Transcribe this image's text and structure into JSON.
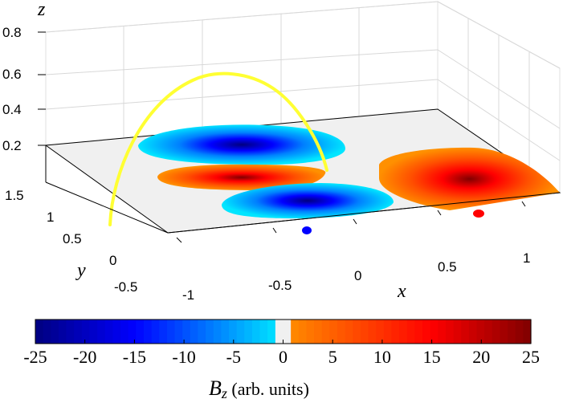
{
  "chart_data": {
    "type": "surface-3d",
    "axes": {
      "x": {
        "label": "x",
        "ticks": [
          "-1",
          "-0.5",
          "0",
          "0.5",
          "1"
        ]
      },
      "y": {
        "label": "y",
        "ticks": [
          "-0.5",
          "0",
          "0.5",
          "1",
          "1.5"
        ]
      },
      "z": {
        "label": "z",
        "ticks": [
          "0.2",
          "0.4",
          "0.6",
          "0.8"
        ]
      }
    },
    "grid": true,
    "lobes": [
      {
        "name": "negative-lobe-top",
        "sign": "negative",
        "peak": -25
      },
      {
        "name": "positive-lobe-middle",
        "sign": "positive",
        "peak": 25
      },
      {
        "name": "negative-lobe-front",
        "sign": "negative",
        "peak": -25
      },
      {
        "name": "positive-lobe-right",
        "sign": "positive",
        "peak": 25
      }
    ],
    "footpoints": [
      {
        "name": "negative-footpoint",
        "color": "#0000ff"
      },
      {
        "name": "positive-footpoint",
        "color": "#ff0000"
      }
    ],
    "loop": {
      "color": "#ffff33"
    },
    "colorbar": {
      "min": -25,
      "max": 25,
      "ticks": [
        "-25",
        "-20",
        "-15",
        "-10",
        "-5",
        "0",
        "5",
        "10",
        "15",
        "20",
        "25"
      ],
      "label_main": "B",
      "label_sub": "z",
      "label_suffix": " (arb. units)",
      "colors": {
        "neg_dark": "#000080",
        "neg_mid": "#0000ff",
        "neg_light": "#00e5ff",
        "zero": "#f0f0f0",
        "pos_light": "#ff8c00",
        "pos_mid": "#ff0000",
        "pos_dark": "#800000"
      }
    }
  }
}
